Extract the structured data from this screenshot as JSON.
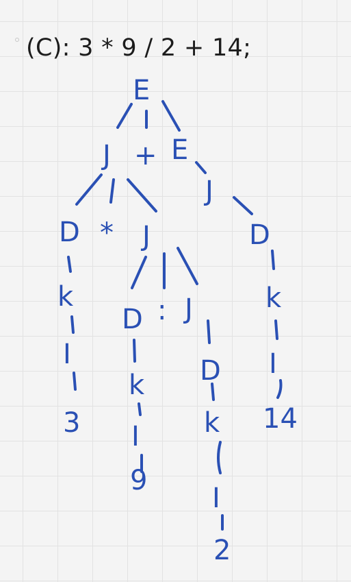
{
  "title": "(C): 3 * 9 / 2 + 14;",
  "colors": {
    "ink": "#2a50b4",
    "text": "#1c1c1c",
    "grid": "#e2e2e2"
  },
  "tree": {
    "root": {
      "label": "E"
    },
    "level1": [
      {
        "label": "J"
      },
      {
        "label": "+"
      },
      {
        "label": "E"
      }
    ],
    "nodes": [
      {
        "id": "n-J-a",
        "label": "J"
      },
      {
        "id": "n-D-a",
        "label": "D"
      },
      {
        "id": "n-star",
        "label": "*"
      },
      {
        "id": "n-J-b",
        "label": "J"
      },
      {
        "id": "n-k-a",
        "label": "k"
      },
      {
        "id": "n-I-a",
        "label": "I"
      },
      {
        "id": "n-3",
        "label": "3"
      },
      {
        "id": "n-D-b",
        "label": "D"
      },
      {
        "id": "n-colon",
        "label": ":"
      },
      {
        "id": "n-J-c",
        "label": "J"
      },
      {
        "id": "n-k-b",
        "label": "k"
      },
      {
        "id": "n-I-b",
        "label": "I"
      },
      {
        "id": "n-9",
        "label": "9"
      },
      {
        "id": "n-D-c",
        "label": "D"
      },
      {
        "id": "n-k-c",
        "label": "k"
      },
      {
        "id": "n-I-c",
        "label": "I"
      },
      {
        "id": "n-2",
        "label": "2"
      },
      {
        "id": "n-D-d",
        "label": "D"
      },
      {
        "id": "n-k-d",
        "label": "k"
      },
      {
        "id": "n-I-d",
        "label": "I"
      },
      {
        "id": "n-14",
        "label": "14"
      }
    ]
  }
}
